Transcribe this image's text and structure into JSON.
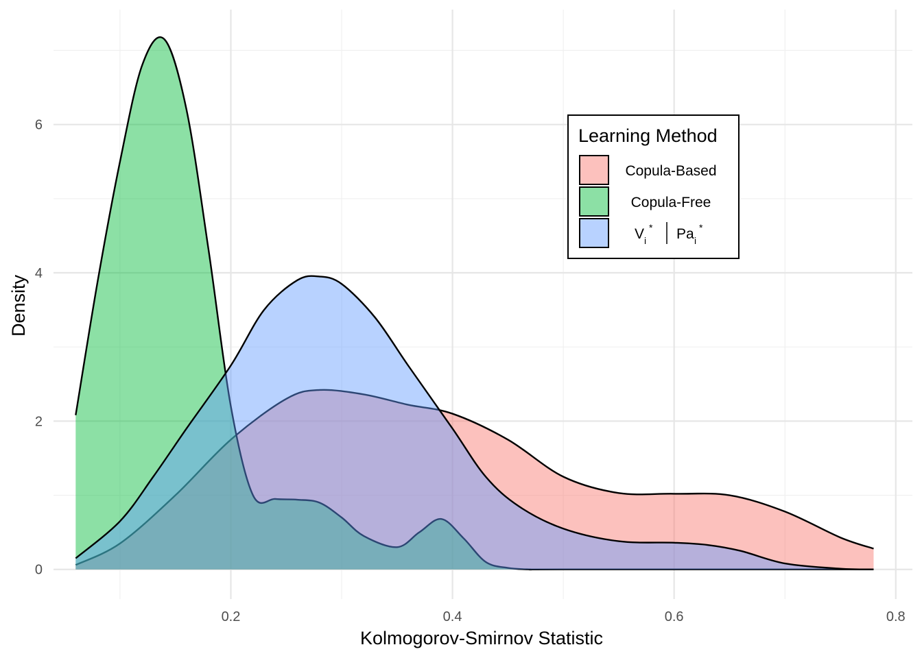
{
  "chart_data": {
    "type": "area",
    "title": "",
    "xlabel": "Kolmogorov-Smirnov Statistic",
    "ylabel": "Density",
    "xlim": [
      0.04,
      0.815
    ],
    "ylim": [
      -0.4,
      7.55
    ],
    "x_ticks": [
      0.2,
      0.4,
      0.6,
      0.8
    ],
    "x_tick_labels": [
      "0.2",
      "0.4",
      "0.6",
      "0.8"
    ],
    "x_minor_ticks": [
      0.1,
      0.3,
      0.5,
      0.7
    ],
    "y_ticks": [
      0,
      2,
      4,
      6
    ],
    "y_tick_labels": [
      "0",
      "2",
      "4",
      "6"
    ],
    "y_minor_ticks": [
      1,
      3,
      5,
      7
    ],
    "grid": true,
    "legend": {
      "title": "Learning Method",
      "placement": "top-right",
      "entries": [
        {
          "label": "Copula-Based",
          "color": "#F8766D"
        },
        {
          "label": "Copula-Free",
          "color": "#00BA38"
        },
        {
          "label_main": "V",
          "label_sub": "i",
          "label_sup": "*",
          "label_sep": "|",
          "label_main2": "Pa",
          "label_sub2": "i",
          "label_sup2": "*",
          "color": "#619CFF"
        }
      ]
    },
    "series": [
      {
        "name": "Copula-Based",
        "color": "#F8766D",
        "x": [
          0.06,
          0.1,
          0.15,
          0.2,
          0.25,
          0.28,
          0.32,
          0.36,
          0.4,
          0.45,
          0.5,
          0.55,
          0.6,
          0.65,
          0.7,
          0.75,
          0.78
        ],
        "y": [
          0.06,
          0.35,
          1.0,
          1.75,
          2.3,
          2.42,
          2.36,
          2.22,
          2.1,
          1.75,
          1.25,
          1.03,
          1.02,
          1.0,
          0.78,
          0.43,
          0.28
        ]
      },
      {
        "name": "Copula-Free",
        "color": "#00BA38",
        "x": [
          0.06,
          0.08,
          0.1,
          0.12,
          0.14,
          0.16,
          0.18,
          0.2,
          0.22,
          0.24,
          0.26,
          0.28,
          0.3,
          0.32,
          0.35,
          0.37,
          0.39,
          0.41,
          0.43,
          0.45,
          0.47,
          0.5,
          0.78
        ],
        "y": [
          2.08,
          3.9,
          5.5,
          6.8,
          7.15,
          6.2,
          4.3,
          2.2,
          1.0,
          0.95,
          0.94,
          0.9,
          0.7,
          0.45,
          0.3,
          0.5,
          0.68,
          0.42,
          0.1,
          0.02,
          0.0,
          0.0,
          0.0
        ]
      },
      {
        "name": "",
        "color": "#619CFF",
        "x": [
          0.06,
          0.1,
          0.13,
          0.16,
          0.2,
          0.23,
          0.26,
          0.28,
          0.3,
          0.33,
          0.36,
          0.4,
          0.43,
          0.46,
          0.5,
          0.55,
          0.6,
          0.63,
          0.66,
          0.7,
          0.75,
          0.78
        ],
        "y": [
          0.15,
          0.65,
          1.25,
          1.9,
          2.75,
          3.5,
          3.9,
          3.95,
          3.85,
          3.4,
          2.75,
          1.9,
          1.25,
          0.85,
          0.55,
          0.38,
          0.36,
          0.33,
          0.25,
          0.08,
          0.01,
          0.0
        ]
      }
    ]
  }
}
